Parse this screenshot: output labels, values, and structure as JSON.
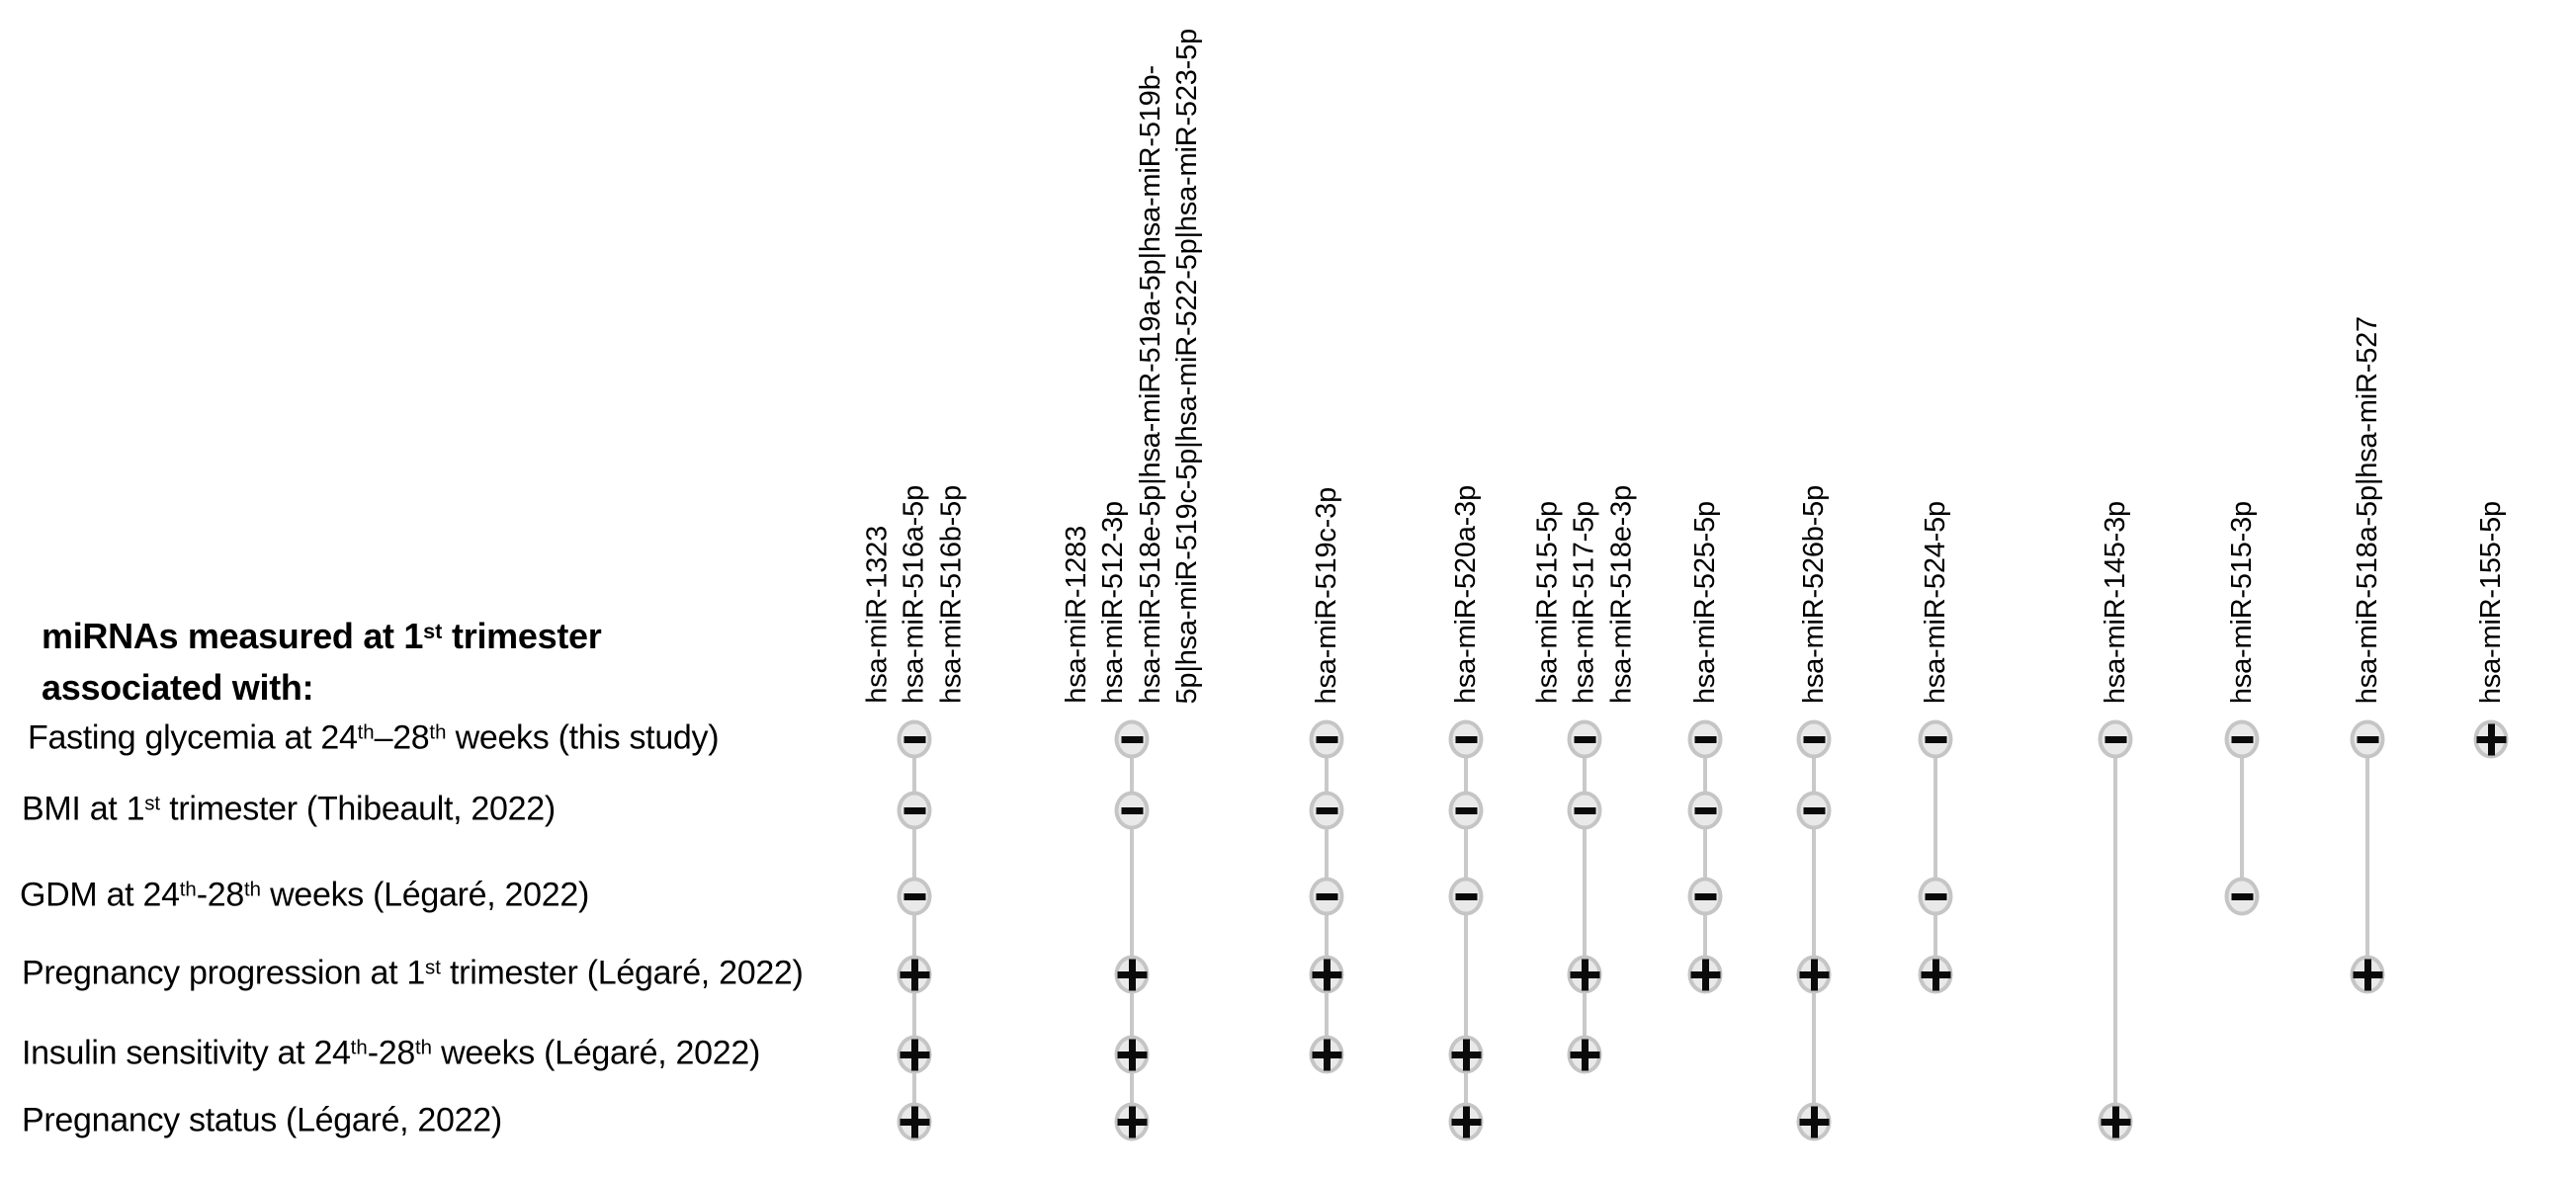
{
  "header": {
    "title_line1": "miRNAs measured at 1^{st} trimester",
    "title_line2": "associated with:"
  },
  "rows": [
    {
      "label": "Fasting glycemia at 24^{th}–28^{th} weeks (this study)"
    },
    {
      "label": "BMI at 1^{st} trimester (Thibeault, 2022)"
    },
    {
      "label": "GDM at 24^{th}-28^{th} weeks (Légaré, 2022)"
    },
    {
      "label": "Pregnancy progression at 1^{st} trimester (Légaré, 2022)"
    },
    {
      "label": "Insulin sensitivity at 24^{th}-28^{th} weeks (Légaré, 2022)"
    },
    {
      "label": "Pregnancy status (Légaré, 2022)"
    }
  ],
  "columns": [
    {
      "label_lines": [
        "hsa-miR-1323",
        "hsa-miR-516a-5p",
        "hsa-miR-516b-5p"
      ],
      "marks": [
        "-",
        "-",
        "-",
        "+",
        "+",
        "+"
      ]
    },
    {
      "label_lines": [
        "hsa-miR-1283",
        "hsa-miR-512-3p",
        "hsa-miR-518e-5p|hsa-miR-519a-5p|hsa-miR-519b-",
        "5p|hsa-miR-519c-5p|hsa-miR-522-5p|hsa-miR-523-5p"
      ],
      "marks": [
        "-",
        "-",
        null,
        "+",
        "+",
        "+"
      ]
    },
    {
      "label_lines": [
        "hsa-miR-519c-3p"
      ],
      "marks": [
        "-",
        "-",
        "-",
        "+",
        "+",
        null
      ]
    },
    {
      "label_lines": [
        "hsa-miR-520a-3p"
      ],
      "marks": [
        "-",
        "-",
        "-",
        null,
        "+",
        "+"
      ]
    },
    {
      "label_lines": [
        "hsa-miR-515-5p",
        "hsa-miR-517-5p",
        "hsa-miR-518e-3p"
      ],
      "marks": [
        "-",
        "-",
        null,
        "+",
        "+",
        null
      ]
    },
    {
      "label_lines": [
        "hsa-miR-525-5p"
      ],
      "marks": [
        "-",
        "-",
        "-",
        "+",
        null,
        null
      ]
    },
    {
      "label_lines": [
        "hsa-miR-526b-5p"
      ],
      "marks": [
        "-",
        "-",
        null,
        "+",
        null,
        "+"
      ]
    },
    {
      "label_lines": [
        "hsa-miR-524-5p"
      ],
      "marks": [
        "-",
        null,
        "-",
        "+",
        null,
        null
      ]
    },
    {
      "label_lines": [
        "hsa-miR-145-3p"
      ],
      "marks": [
        "-",
        null,
        null,
        null,
        null,
        "+"
      ]
    },
    {
      "label_lines": [
        "hsa-miR-515-3p"
      ],
      "marks": [
        "-",
        null,
        "-",
        null,
        null,
        null
      ]
    },
    {
      "label_lines": [
        "hsa-miR-518a-5p|hsa-miR-527"
      ],
      "marks": [
        "-",
        null,
        null,
        "+",
        null,
        null
      ]
    },
    {
      "label_lines": [
        "hsa-miR-155-5p"
      ],
      "marks": [
        "+",
        null,
        null,
        null,
        null,
        null
      ]
    }
  ],
  "colors": {
    "circle_fill": "#e9e9e9",
    "circle_border": "#c5c5c5",
    "glyph": "#0a0a0a",
    "connector_line": "#c9c9c9",
    "text": "#000000"
  },
  "chart_data": {
    "type": "table",
    "title": "miRNAs measured at 1st trimester associated with:",
    "rows": [
      "Fasting glycemia at 24th–28th weeks (this study)",
      "BMI at 1st trimester (Thibeault, 2022)",
      "GDM at 24th-28th weeks (Légaré, 2022)",
      "Pregnancy progression at 1st trimester (Légaré, 2022)",
      "Insulin sensitivity at 24th-28th weeks (Légaré, 2022)",
      "Pregnancy status (Légaré, 2022)"
    ],
    "columns": [
      "hsa-miR-1323 | hsa-miR-516a-5p | hsa-miR-516b-5p",
      "hsa-miR-1283 | hsa-miR-512-3p | hsa-miR-518e-5p|hsa-miR-519a-5p|hsa-miR-519b-5p|hsa-miR-519c-5p|hsa-miR-522-5p|hsa-miR-523-5p",
      "hsa-miR-519c-3p",
      "hsa-miR-520a-3p",
      "hsa-miR-515-5p | hsa-miR-517-5p | hsa-miR-518e-3p",
      "hsa-miR-525-5p",
      "hsa-miR-526b-5p",
      "hsa-miR-524-5p",
      "hsa-miR-145-3p",
      "hsa-miR-515-3p",
      "hsa-miR-518a-5p|hsa-miR-527",
      "hsa-miR-155-5p"
    ],
    "values": [
      [
        "-",
        "-",
        "-",
        "-",
        "-",
        "-",
        "-",
        "-",
        "-",
        "-",
        "-",
        "+"
      ],
      [
        "-",
        "-",
        "-",
        "-",
        "-",
        "-",
        "-",
        null,
        null,
        null,
        null,
        null
      ],
      [
        "-",
        null,
        "-",
        "-",
        null,
        "-",
        null,
        "-",
        null,
        "-",
        null,
        null
      ],
      [
        "+",
        "+",
        "+",
        null,
        "+",
        "+",
        "+",
        "+",
        null,
        null,
        "+",
        null
      ],
      [
        "+",
        "+",
        "+",
        "+",
        "+",
        null,
        null,
        null,
        null,
        null,
        null,
        null
      ],
      [
        "+",
        "+",
        null,
        "+",
        null,
        null,
        "+",
        null,
        "+",
        null,
        null,
        null
      ]
    ],
    "legend_position": "none",
    "grid": false
  }
}
